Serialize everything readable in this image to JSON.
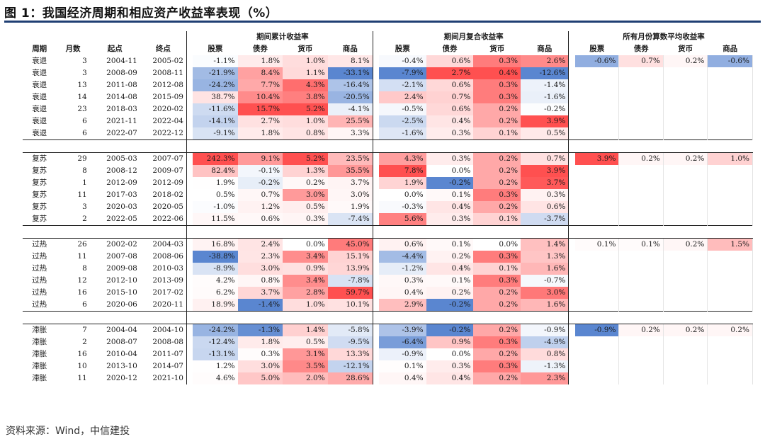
{
  "title": "图 1：我国经济周期和相应资产收益率表现（%）",
  "source": "资料来源：Wind，中信建投",
  "group_headers": {
    "cumulative": "期间累计收益率",
    "monthly": "期间月复合收益率",
    "average": "所有月份算数平均收益率"
  },
  "column_headers": {
    "phase": "周期",
    "months": "月数",
    "start": "起点",
    "end": "终点",
    "assets": [
      "股票",
      "债券",
      "货币",
      "商品"
    ]
  },
  "colors": {
    "title_rule": "#1f3f73",
    "pos_max": "#ef5050",
    "neg_max": "#5a86d0"
  },
  "groups": [
    {
      "rows": [
        {
          "phase": "衰退",
          "months": "3",
          "start": "2004-11",
          "end": "2005-02",
          "cum": [
            "-1.1%",
            "1.8%",
            "1.0%",
            "8.1%"
          ],
          "mon": [
            "-0.4%",
            "0.6%",
            "0.3%",
            "2.6%"
          ],
          "avg": [
            "-0.6%",
            "0.7%",
            "0.2%",
            "-0.6%"
          ]
        },
        {
          "phase": "衰退",
          "months": "3",
          "start": "2008-09",
          "end": "2008-11",
          "cum": [
            "-21.9%",
            "8.4%",
            "1.1%",
            "-33.1%"
          ],
          "mon": [
            "-7.9%",
            "2.7%",
            "0.4%",
            "-12.6%"
          ]
        },
        {
          "phase": "衰退",
          "months": "13",
          "start": "2011-08",
          "end": "2012-08",
          "cum": [
            "-24.2%",
            "7.7%",
            "4.3%",
            "-16.4%"
          ],
          "mon": [
            "-2.1%",
            "0.6%",
            "0.3%",
            "-1.4%"
          ]
        },
        {
          "phase": "衰退",
          "months": "14",
          "start": "2014-08",
          "end": "2015-09",
          "cum": [
            "38.7%",
            "10.4%",
            "3.8%",
            "-20.5%"
          ],
          "mon": [
            "2.4%",
            "0.7%",
            "0.3%",
            "-1.6%"
          ]
        },
        {
          "phase": "衰退",
          "months": "23",
          "start": "2018-03",
          "end": "2020-02",
          "cum": [
            "-11.6%",
            "15.7%",
            "5.2%",
            "-4.1%"
          ],
          "mon": [
            "-0.5%",
            "0.6%",
            "0.2%",
            "-0.2%"
          ]
        },
        {
          "phase": "衰退",
          "months": "6",
          "start": "2021-11",
          "end": "2022-04",
          "cum": [
            "-14.1%",
            "2.7%",
            "1.0%",
            "25.5%"
          ],
          "mon": [
            "-2.5%",
            "0.4%",
            "0.2%",
            "3.9%"
          ]
        },
        {
          "phase": "衰退",
          "months": "6",
          "start": "2022-07",
          "end": "2022-12",
          "cum": [
            "-9.1%",
            "1.8%",
            "0.8%",
            "3.3%"
          ],
          "mon": [
            "-1.6%",
            "0.3%",
            "0.1%",
            "0.5%"
          ]
        }
      ]
    },
    {
      "rows": [
        {
          "phase": "复苏",
          "months": "29",
          "start": "2005-03",
          "end": "2007-07",
          "cum": [
            "242.3%",
            "9.1%",
            "5.2%",
            "23.5%"
          ],
          "mon": [
            "4.3%",
            "0.3%",
            "0.2%",
            "0.7%"
          ],
          "avg": [
            "3.9%",
            "0.2%",
            "0.2%",
            "1.0%"
          ]
        },
        {
          "phase": "复苏",
          "months": "8",
          "start": "2008-12",
          "end": "2009-07",
          "cum": [
            "82.4%",
            "-0.1%",
            "1.3%",
            "35.5%"
          ],
          "mon": [
            "7.8%",
            "0.0%",
            "0.2%",
            "3.9%"
          ]
        },
        {
          "phase": "复苏",
          "months": "1",
          "start": "2012-09",
          "end": "2012-09",
          "cum": [
            "1.9%",
            "-0.2%",
            "0.2%",
            "3.7%"
          ],
          "mon": [
            "1.9%",
            "-0.2%",
            "0.2%",
            "3.7%"
          ]
        },
        {
          "phase": "复苏",
          "months": "11",
          "start": "2017-03",
          "end": "2018-02",
          "cum": [
            "0.5%",
            "0.7%",
            "3.0%",
            "3.0%"
          ],
          "mon": [
            "0.0%",
            "0.1%",
            "0.3%",
            "0.3%"
          ]
        },
        {
          "phase": "复苏",
          "months": "3",
          "start": "2020-03",
          "end": "2020-05",
          "cum": [
            "-1.0%",
            "1.2%",
            "0.5%",
            "1.9%"
          ],
          "mon": [
            "-0.3%",
            "0.4%",
            "0.2%",
            "0.6%"
          ]
        },
        {
          "phase": "复苏",
          "months": "2",
          "start": "2022-05",
          "end": "2022-06",
          "cum": [
            "11.5%",
            "0.6%",
            "0.3%",
            "-7.4%"
          ],
          "mon": [
            "5.6%",
            "0.3%",
            "0.1%",
            "-3.7%"
          ]
        }
      ]
    },
    {
      "rows": [
        {
          "phase": "过热",
          "months": "26",
          "start": "2002-02",
          "end": "2004-03",
          "cum": [
            "16.8%",
            "2.4%",
            "0.0%",
            "45.0%"
          ],
          "mon": [
            "0.6%",
            "0.1%",
            "0.0%",
            "1.4%"
          ],
          "avg": [
            "0.1%",
            "0.1%",
            "0.2%",
            "1.5%"
          ]
        },
        {
          "phase": "过热",
          "months": "11",
          "start": "2007-08",
          "end": "2008-06",
          "cum": [
            "-38.8%",
            "2.3%",
            "3.4%",
            "15.1%"
          ],
          "mon": [
            "-4.4%",
            "0.2%",
            "0.3%",
            "1.3%"
          ]
        },
        {
          "phase": "过热",
          "months": "8",
          "start": "2009-08",
          "end": "2010-03",
          "cum": [
            "-8.9%",
            "3.0%",
            "0.9%",
            "13.9%"
          ],
          "mon": [
            "-1.2%",
            "0.4%",
            "0.1%",
            "1.6%"
          ]
        },
        {
          "phase": "过热",
          "months": "12",
          "start": "2012-10",
          "end": "2013-09",
          "cum": [
            "4.2%",
            "0.8%",
            "3.4%",
            "-7.8%"
          ],
          "mon": [
            "0.3%",
            "0.1%",
            "0.3%",
            "-0.7%"
          ]
        },
        {
          "phase": "过热",
          "months": "16",
          "start": "2015-10",
          "end": "2017-02",
          "cum": [
            "6.2%",
            "3.7%",
            "2.8%",
            "59.7%"
          ],
          "mon": [
            "0.4%",
            "0.2%",
            "0.2%",
            "3.0%"
          ]
        },
        {
          "phase": "过热",
          "months": "6",
          "start": "2020-06",
          "end": "2020-11",
          "cum": [
            "18.9%",
            "-1.4%",
            "1.0%",
            "10.1%"
          ],
          "mon": [
            "2.9%",
            "-0.2%",
            "0.2%",
            "1.6%"
          ]
        }
      ]
    },
    {
      "rows": [
        {
          "phase": "滞胀",
          "months": "7",
          "start": "2004-04",
          "end": "2004-10",
          "cum": [
            "-24.2%",
            "-1.3%",
            "1.4%",
            "-5.8%"
          ],
          "mon": [
            "-3.9%",
            "-0.2%",
            "0.2%",
            "-0.9%"
          ],
          "avg": [
            "-0.9%",
            "0.2%",
            "0.2%",
            "0.2%"
          ]
        },
        {
          "phase": "滞胀",
          "months": "2",
          "start": "2008-07",
          "end": "2008-08",
          "cum": [
            "-12.4%",
            "1.8%",
            "0.5%",
            "-9.5%"
          ],
          "mon": [
            "-6.4%",
            "0.9%",
            "0.3%",
            "-4.9%"
          ]
        },
        {
          "phase": "滞胀",
          "months": "16",
          "start": "2010-04",
          "end": "2011-07",
          "cum": [
            "-13.1%",
            "0.3%",
            "3.1%",
            "13.3%"
          ],
          "mon": [
            "-0.9%",
            "0.0%",
            "0.2%",
            "0.8%"
          ]
        },
        {
          "phase": "滞胀",
          "months": "10",
          "start": "2013-10",
          "end": "2014-07",
          "cum": [
            "1.2%",
            "3.0%",
            "3.5%",
            "-12.1%"
          ],
          "mon": [
            "0.1%",
            "0.3%",
            "0.3%",
            "-1.3%"
          ]
        },
        {
          "phase": "滞胀",
          "months": "11",
          "start": "2020-12",
          "end": "2021-10",
          "cum": [
            "4.6%",
            "5.0%",
            "2.0%",
            "28.6%"
          ],
          "mon": [
            "0.4%",
            "0.4%",
            "0.2%",
            "2.3%"
          ]
        }
      ]
    }
  ]
}
